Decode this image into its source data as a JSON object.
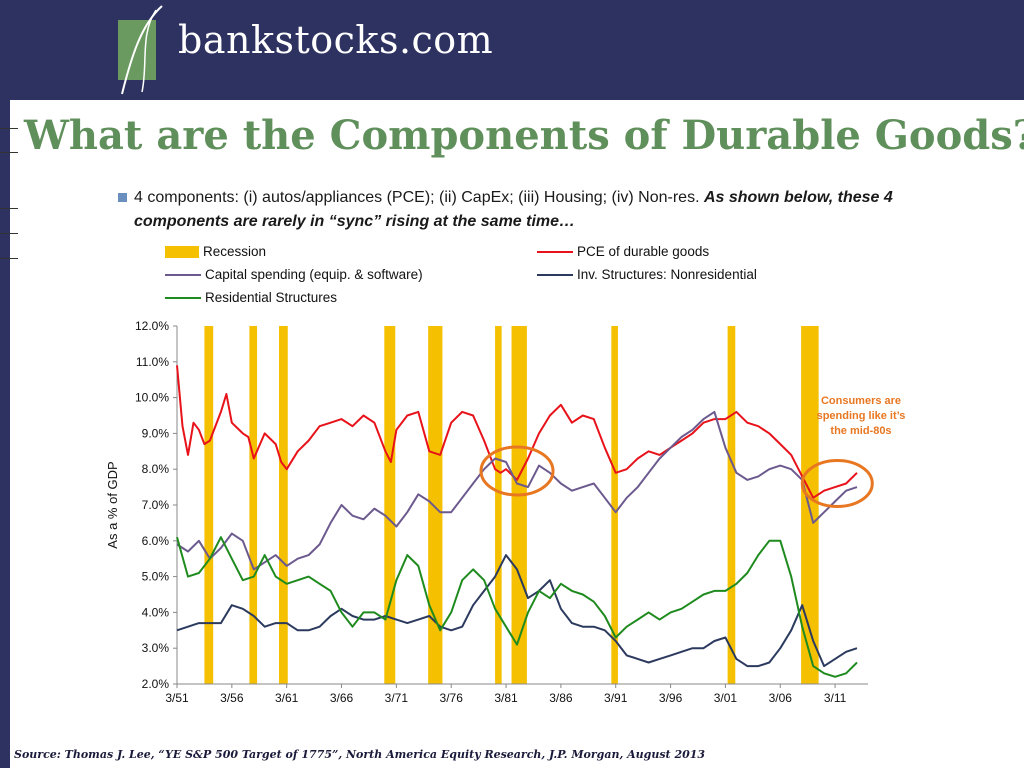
{
  "header": {
    "logo_text": "bankstocks.com",
    "logo_icon": "leaf-logo-icon"
  },
  "title": "What are the Components of Durable Goods?",
  "bullet": {
    "text": "4 components: (i) autos/appliances (PCE); (ii) CapEx; (iii) Housing; (iv) Non-res.",
    "emphasis": "As shown below, these 4 components are rarely in “sync” rising at the same time…"
  },
  "source": "Source: Thomas J. Lee, “YE S&P 500 Target of 1775”, North America Equity Research, J.P. Morgan, August 2013",
  "colors": {
    "recession": "#f5c000",
    "pce": "#e8121a",
    "capex": "#6c5a8f",
    "nonres": "#2b3a5e",
    "residential": "#1f8b1f",
    "annotation": "#e87722",
    "title": "#5f8f5a"
  },
  "chart_data": {
    "type": "line",
    "ylabel": "As a % of GDP",
    "ylim": [
      2.0,
      12.0
    ],
    "yticks": [
      "2.0%",
      "3.0%",
      "4.0%",
      "5.0%",
      "6.0%",
      "7.0%",
      "8.0%",
      "9.0%",
      "10.0%",
      "11.0%",
      "12.0%"
    ],
    "xlim": [
      1951.0,
      2014.0
    ],
    "xticks": [
      "3/51",
      "3/56",
      "3/61",
      "3/66",
      "3/71",
      "3/76",
      "3/81",
      "3/86",
      "3/91",
      "3/96",
      "3/01",
      "3/06",
      "3/11"
    ],
    "legend": {
      "recession": "Recession",
      "pce": "PCE of durable goods",
      "capex": "Capital spending (equip. & software)",
      "nonres": "Inv. Structures: Nonresidential",
      "residential": "Residential Structures"
    },
    "recessions": [
      [
        1953.5,
        1954.3
      ],
      [
        1957.6,
        1958.3
      ],
      [
        1960.3,
        1961.1
      ],
      [
        1969.9,
        1970.9
      ],
      [
        1973.9,
        1975.2
      ],
      [
        1980.0,
        1980.6
      ],
      [
        1981.5,
        1982.9
      ],
      [
        1990.6,
        1991.2
      ],
      [
        2001.2,
        2001.9
      ],
      [
        2007.9,
        2009.5
      ]
    ],
    "series": [
      {
        "key": "pce",
        "name": "PCE of durable goods",
        "x": [
          1951,
          1951.5,
          1952,
          1952.5,
          1953,
          1953.5,
          1954,
          1955,
          1955.5,
          1956,
          1957,
          1957.5,
          1958,
          1959,
          1960,
          1960.5,
          1961,
          1962,
          1963,
          1964,
          1965,
          1966,
          1967,
          1968,
          1969,
          1970,
          1970.5,
          1971,
          1972,
          1973,
          1974,
          1975,
          1976,
          1977,
          1978,
          1979,
          1980,
          1980.5,
          1981,
          1982,
          1983,
          1984,
          1985,
          1986,
          1987,
          1988,
          1989,
          1990,
          1991,
          1992,
          1993,
          1994,
          1995,
          1996,
          1997,
          1998,
          1999,
          2000,
          2001,
          2002,
          2003,
          2004,
          2005,
          2006,
          2007,
          2008,
          2009,
          2010,
          2011,
          2012,
          2013
        ],
        "y": [
          10.9,
          9.2,
          8.4,
          9.3,
          9.1,
          8.7,
          8.8,
          9.6,
          10.1,
          9.3,
          9.0,
          8.9,
          8.3,
          9.0,
          8.7,
          8.2,
          8.0,
          8.5,
          8.8,
          9.2,
          9.3,
          9.4,
          9.2,
          9.5,
          9.3,
          8.5,
          8.2,
          9.1,
          9.5,
          9.6,
          8.5,
          8.4,
          9.3,
          9.6,
          9.5,
          8.8,
          8.0,
          7.9,
          8.0,
          7.7,
          8.3,
          9.0,
          9.5,
          9.8,
          9.3,
          9.5,
          9.4,
          8.6,
          7.9,
          8.0,
          8.3,
          8.5,
          8.4,
          8.6,
          8.8,
          9.0,
          9.3,
          9.4,
          9.4,
          9.6,
          9.3,
          9.2,
          9.0,
          8.7,
          8.4,
          7.8,
          7.2,
          7.4,
          7.5,
          7.6,
          7.9
        ]
      },
      {
        "key": "capex",
        "name": "Capital spending (equip. & software)",
        "x": [
          1951,
          1952,
          1953,
          1954,
          1955,
          1956,
          1957,
          1958,
          1959,
          1960,
          1961,
          1962,
          1963,
          1964,
          1965,
          1966,
          1967,
          1968,
          1969,
          1970,
          1971,
          1972,
          1973,
          1974,
          1975,
          1976,
          1977,
          1978,
          1979,
          1980,
          1981,
          1982,
          1983,
          1984,
          1985,
          1986,
          1987,
          1988,
          1989,
          1990,
          1991,
          1992,
          1993,
          1994,
          1995,
          1996,
          1997,
          1998,
          1999,
          2000,
          2001,
          2002,
          2003,
          2004,
          2005,
          2006,
          2007,
          2008,
          2009,
          2010,
          2011,
          2012,
          2013
        ],
        "y": [
          5.9,
          5.7,
          6.0,
          5.5,
          5.8,
          6.2,
          6.0,
          5.2,
          5.4,
          5.6,
          5.3,
          5.5,
          5.6,
          5.9,
          6.5,
          7.0,
          6.7,
          6.6,
          6.9,
          6.7,
          6.4,
          6.8,
          7.3,
          7.1,
          6.8,
          6.8,
          7.2,
          7.6,
          8.0,
          8.3,
          8.2,
          7.6,
          7.5,
          8.1,
          7.9,
          7.6,
          7.4,
          7.5,
          7.6,
          7.2,
          6.8,
          7.2,
          7.5,
          7.9,
          8.3,
          8.6,
          8.9,
          9.1,
          9.4,
          9.6,
          8.6,
          7.9,
          7.7,
          7.8,
          8.0,
          8.1,
          8.0,
          7.7,
          6.5,
          6.8,
          7.1,
          7.4,
          7.5
        ]
      },
      {
        "key": "nonres",
        "name": "Inv. Structures: Nonresidential",
        "x": [
          1951,
          1952,
          1953,
          1954,
          1955,
          1956,
          1957,
          1958,
          1959,
          1960,
          1961,
          1962,
          1963,
          1964,
          1965,
          1966,
          1967,
          1968,
          1969,
          1970,
          1971,
          1972,
          1973,
          1974,
          1975,
          1976,
          1977,
          1978,
          1979,
          1980,
          1981,
          1982,
          1983,
          1984,
          1985,
          1986,
          1987,
          1988,
          1989,
          1990,
          1991,
          1992,
          1993,
          1994,
          1995,
          1996,
          1997,
          1998,
          1999,
          2000,
          2001,
          2002,
          2003,
          2004,
          2005,
          2006,
          2007,
          2008,
          2009,
          2010,
          2011,
          2012,
          2013
        ],
        "y": [
          3.5,
          3.6,
          3.7,
          3.7,
          3.7,
          4.2,
          4.1,
          3.9,
          3.6,
          3.7,
          3.7,
          3.5,
          3.5,
          3.6,
          3.9,
          4.1,
          3.9,
          3.8,
          3.8,
          3.9,
          3.8,
          3.7,
          3.8,
          3.9,
          3.6,
          3.5,
          3.6,
          4.2,
          4.6,
          5.0,
          5.6,
          5.2,
          4.4,
          4.6,
          4.9,
          4.1,
          3.7,
          3.6,
          3.6,
          3.5,
          3.2,
          2.8,
          2.7,
          2.6,
          2.7,
          2.8,
          2.9,
          3.0,
          3.0,
          3.2,
          3.3,
          2.7,
          2.5,
          2.5,
          2.6,
          3.0,
          3.5,
          4.2,
          3.2,
          2.5,
          2.7,
          2.9,
          3.0
        ]
      },
      {
        "key": "residential",
        "name": "Residential Structures",
        "x": [
          1951,
          1952,
          1953,
          1954,
          1955,
          1956,
          1957,
          1958,
          1959,
          1960,
          1961,
          1962,
          1963,
          1964,
          1965,
          1966,
          1967,
          1968,
          1969,
          1970,
          1971,
          1972,
          1973,
          1974,
          1975,
          1976,
          1977,
          1978,
          1979,
          1980,
          1981,
          1982,
          1983,
          1984,
          1985,
          1986,
          1987,
          1988,
          1989,
          1990,
          1991,
          1992,
          1993,
          1994,
          1995,
          1996,
          1997,
          1998,
          1999,
          2000,
          2001,
          2002,
          2003,
          2004,
          2005,
          2006,
          2007,
          2008,
          2009,
          2010,
          2011,
          2012,
          2013
        ],
        "y": [
          6.1,
          5.0,
          5.1,
          5.5,
          6.1,
          5.5,
          4.9,
          5.0,
          5.6,
          5.0,
          4.8,
          4.9,
          5.0,
          4.8,
          4.6,
          4.0,
          3.6,
          4.0,
          4.0,
          3.8,
          4.9,
          5.6,
          5.3,
          4.2,
          3.5,
          4.0,
          4.9,
          5.2,
          4.9,
          4.1,
          3.6,
          3.1,
          4.0,
          4.6,
          4.4,
          4.8,
          4.6,
          4.5,
          4.3,
          3.9,
          3.3,
          3.6,
          3.8,
          4.0,
          3.8,
          4.0,
          4.1,
          4.3,
          4.5,
          4.6,
          4.6,
          4.8,
          5.1,
          5.6,
          6.0,
          6.0,
          5.0,
          3.6,
          2.5,
          2.3,
          2.2,
          2.3,
          2.6
        ]
      }
    ],
    "annotation": {
      "lines": [
        "Consumers are",
        "spending like it’s",
        "the mid-80s"
      ]
    }
  }
}
